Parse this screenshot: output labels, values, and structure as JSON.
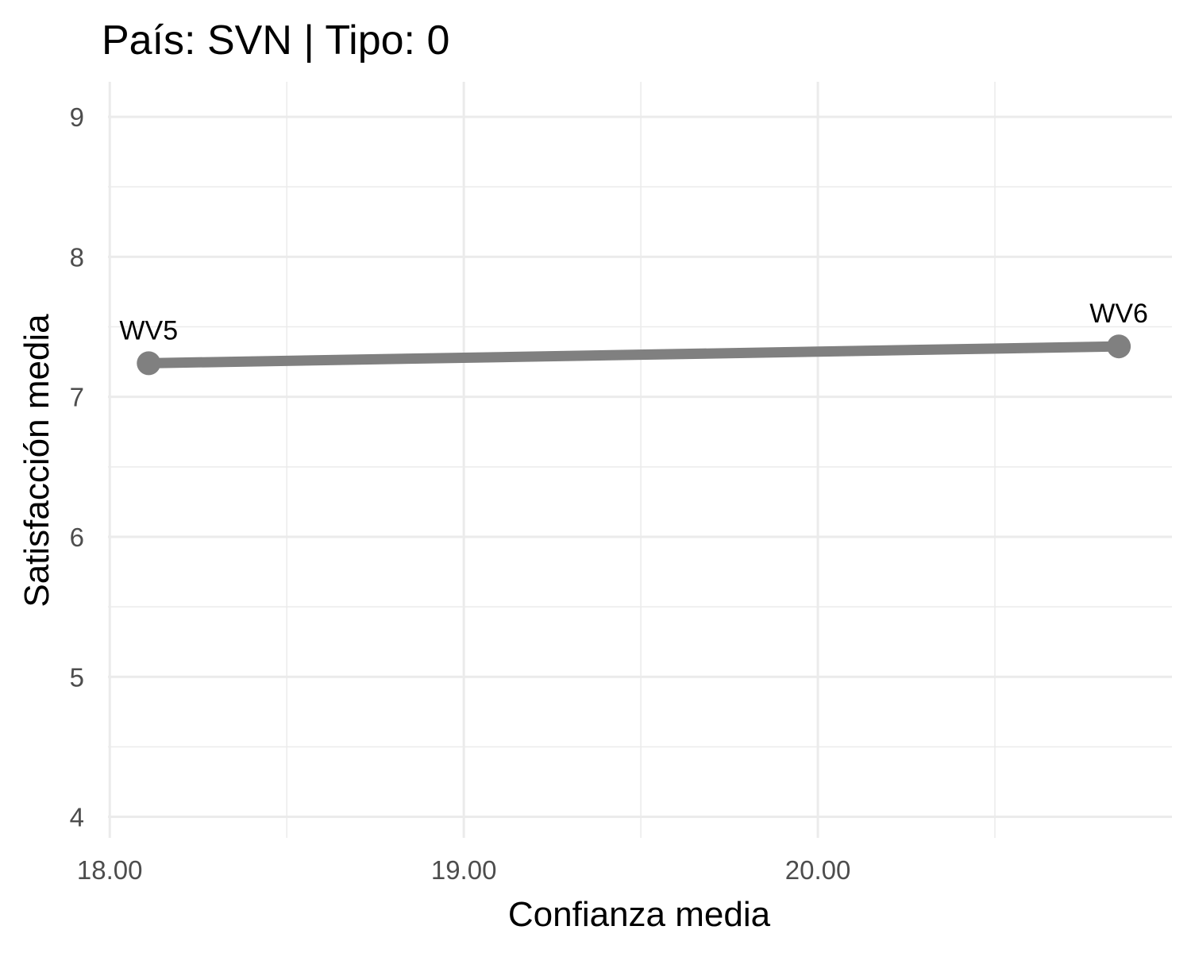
{
  "chart_data": {
    "type": "line",
    "title": "País: SVN | Tipo: 0",
    "xlabel": "Confianza media",
    "ylabel": "Satisfacción media",
    "xlim": [
      17.995,
      21.0
    ],
    "ylim": [
      3.85,
      9.25
    ],
    "x_ticks": [
      18.0,
      19.0,
      20.0
    ],
    "x_tick_labels": [
      "18.00",
      "19.00",
      "20.00"
    ],
    "x_minor_ticks": [
      18.5,
      19.5,
      20.5
    ],
    "y_ticks": [
      4,
      5,
      6,
      7,
      8,
      9
    ],
    "y_tick_labels": [
      "4",
      "5",
      "6",
      "7",
      "8",
      "9"
    ],
    "y_minor_ticks": [
      4.5,
      5.5,
      6.5,
      7.5,
      8.5
    ],
    "grid": true,
    "series": [
      {
        "color": "#808080",
        "points": [
          {
            "x": 18.11,
            "y": 7.24,
            "label": "WV5"
          },
          {
            "x": 20.85,
            "y": 7.36,
            "label": "WV6"
          }
        ]
      }
    ]
  }
}
